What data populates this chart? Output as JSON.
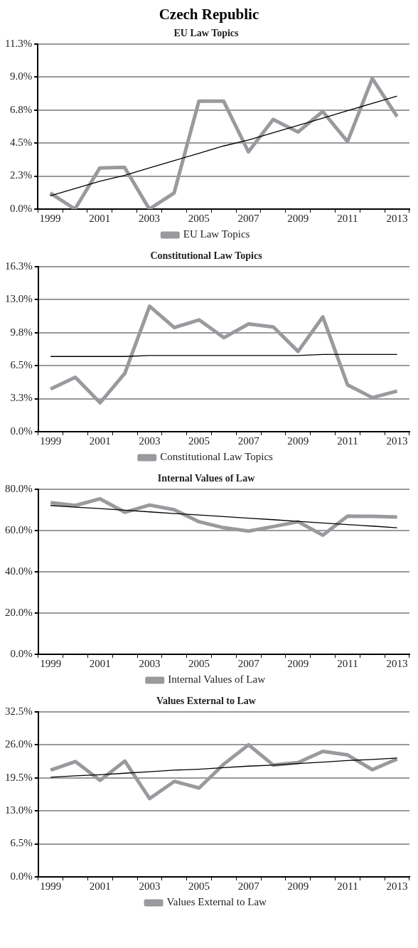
{
  "chart_data": [
    {
      "type": "other",
      "title": "Czech Republic"
    },
    {
      "type": "line",
      "title": "EU Law Topics",
      "categories": [
        "1999",
        null,
        "2001",
        null,
        "2003",
        null,
        "2005",
        null,
        "2007",
        null,
        "2009",
        null,
        "2011",
        null,
        "2013"
      ],
      "series": [
        {
          "name": "EU Law Topics",
          "color": "#999a9d",
          "values": [
            1.1,
            0,
            2.8,
            2.85,
            0,
            1.1,
            7.35,
            7.35,
            3.9,
            6.1,
            5.25,
            6.65,
            4.6,
            8.9,
            6.3
          ]
        },
        {
          "color": "#000000",
          "values": [
            0.9,
            1.4,
            1.9,
            2.3,
            2.8,
            3.3,
            3.8,
            4.3,
            4.7,
            5.2,
            5.7,
            6.2,
            6.7,
            7.2,
            7.7
          ]
        }
      ],
      "ylim": [
        0,
        11.25
      ],
      "yticks": [
        {
          "value": 0,
          "label": "0.0%"
        },
        {
          "value": 2.25,
          "label": "2.3%"
        },
        {
          "value": 4.5,
          "label": "4.5%"
        },
        {
          "value": 6.75,
          "label": "6.8%"
        },
        {
          "value": 9,
          "label": "9.0%"
        },
        {
          "value": 11.25,
          "label": "11.3%"
        }
      ],
      "grid": "y",
      "legend": "bottom",
      "marker": "none"
    },
    {
      "type": "line",
      "title": "Constitutional Law Topics",
      "categories": [
        "1999",
        null,
        "2001",
        null,
        "2003",
        null,
        "2005",
        null,
        "2007",
        null,
        "2009",
        null,
        "2011",
        null,
        "2013"
      ],
      "series": [
        {
          "name": "Constitutional Law Topics",
          "color": "#999a9d",
          "values": [
            4.2,
            5.35,
            2.85,
            5.75,
            12.35,
            10.25,
            11.0,
            9.25,
            10.6,
            10.3,
            7.9,
            11.3,
            4.6,
            3.35,
            4.0
          ]
        },
        {
          "color": "#000000",
          "values": [
            7.4,
            7.4,
            7.4,
            7.4,
            7.5,
            7.5,
            7.5,
            7.5,
            7.5,
            7.5,
            7.5,
            7.6,
            7.6,
            7.6,
            7.6
          ]
        }
      ],
      "ylim": [
        0,
        16.25
      ],
      "yticks": [
        {
          "value": 0,
          "label": "0.0%"
        },
        {
          "value": 3.25,
          "label": "3.3%"
        },
        {
          "value": 6.5,
          "label": "6.5%"
        },
        {
          "value": 9.75,
          "label": "9.8%"
        },
        {
          "value": 13,
          "label": "13.0%"
        },
        {
          "value": 16.25,
          "label": "16.3%"
        }
      ],
      "grid": "y",
      "legend": "bottom",
      "marker": "none"
    },
    {
      "type": "line",
      "title": "Internal Values of Law",
      "categories": [
        "1999",
        null,
        "2001",
        null,
        "2003",
        null,
        "2005",
        null,
        "2007",
        null,
        "2009",
        null,
        "2011",
        null,
        "2013"
      ],
      "series": [
        {
          "name": "Internal Values of Law",
          "color": "#999a9d",
          "values": [
            73.5,
            72.1,
            75.3,
            68.8,
            72.3,
            70.0,
            64.2,
            61.3,
            59.7,
            61.9,
            64.2,
            57.7,
            66.9,
            66.8,
            66.5
          ]
        },
        {
          "color": "#000000",
          "values": [
            72.1,
            71.3,
            70.6,
            69.8,
            69.0,
            68.2,
            67.5,
            66.7,
            65.9,
            65.2,
            64.4,
            63.6,
            62.8,
            62.1,
            61.3
          ]
        }
      ],
      "ylim": [
        0,
        80
      ],
      "yticks": [
        {
          "value": 0,
          "label": "0.0%"
        },
        {
          "value": 20,
          "label": "20.0%"
        },
        {
          "value": 40,
          "label": "40.0%"
        },
        {
          "value": 60,
          "label": "60.0%"
        },
        {
          "value": 80,
          "label": "80.0%"
        }
      ],
      "grid": "y",
      "legend": "bottom",
      "marker": "none"
    },
    {
      "type": "line",
      "title": "Values External to Law",
      "categories": [
        "1999",
        null,
        "2001",
        null,
        "2003",
        null,
        "2005",
        null,
        "2007",
        null,
        "2009",
        null,
        "2011",
        null,
        "2013"
      ],
      "series": [
        {
          "name": "Values External to Law",
          "color": "#999a9d",
          "values": [
            21.0,
            22.7,
            19.0,
            22.8,
            15.4,
            18.8,
            17.5,
            22.2,
            26.0,
            22.0,
            22.5,
            24.7,
            24.0,
            21.1,
            23.2
          ]
        },
        {
          "color": "#000000",
          "values": [
            19.6,
            19.9,
            20.1,
            20.4,
            20.7,
            21.0,
            21.2,
            21.5,
            21.8,
            22.0,
            22.3,
            22.6,
            22.9,
            23.1,
            23.4
          ]
        }
      ],
      "ylim": [
        0,
        32.5
      ],
      "yticks": [
        {
          "value": 0,
          "label": "0.0%"
        },
        {
          "value": 6.5,
          "label": "6.5%"
        },
        {
          "value": 13,
          "label": "13.0%"
        },
        {
          "value": 19.5,
          "label": "19.5%"
        },
        {
          "value": 26,
          "label": "26.0%"
        },
        {
          "value": 32.5,
          "label": "32.5%"
        }
      ],
      "grid": "y",
      "legend": "bottom",
      "marker": "none"
    }
  ]
}
